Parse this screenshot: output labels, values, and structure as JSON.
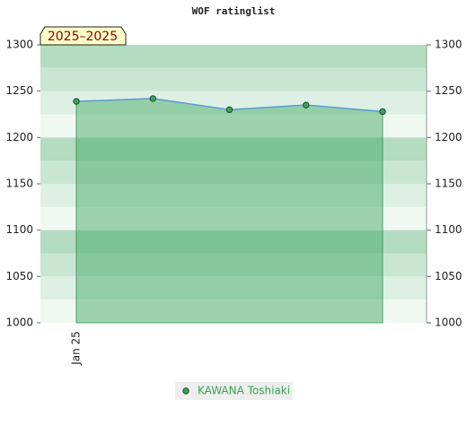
{
  "chart_data": {
    "type": "area",
    "title": "WOF ratinglist",
    "period_label": "2025–2025",
    "categories": [
      "Jan 25",
      null,
      null,
      null,
      null
    ],
    "series": [
      {
        "name": "KAWANA Toshiaki",
        "color": "#5b9bd5",
        "fill": "#3aa35a",
        "values": [
          1239,
          1242,
          1230,
          1235,
          1228
        ]
      }
    ],
    "ylim": [
      1000,
      1300
    ],
    "yticks": [
      1000,
      1050,
      1100,
      1150,
      1200,
      1250,
      1300
    ],
    "right_axis": true,
    "grid": true
  }
}
